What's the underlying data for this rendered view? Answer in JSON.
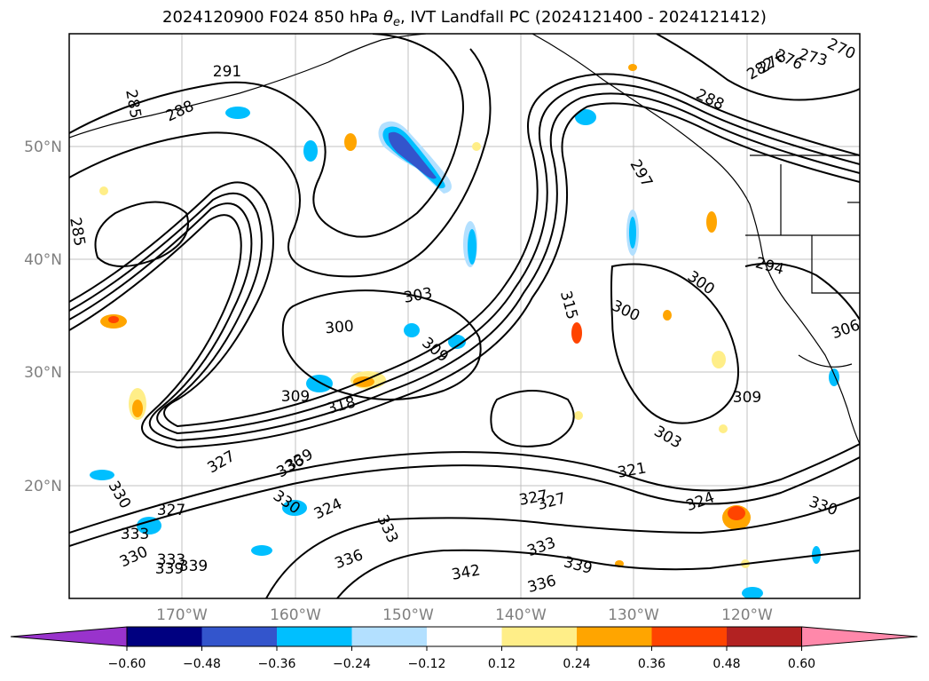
{
  "title": {
    "prefix": "2024120900 F024 850 hPa ",
    "theta": "θ",
    "theta_sub": "e",
    "suffix": ", IVT Landfall PC (2024121400 - 2024121412)"
  },
  "axes": {
    "lat_labels": [
      "50°N",
      "40°N",
      "30°N",
      "20°N"
    ],
    "lon_labels": [
      "170°W",
      "160°W",
      "150°W",
      "140°W",
      "130°W",
      "120°W"
    ]
  },
  "contour_labels": [
    "291",
    "285",
    "288",
    "285",
    "276",
    "273",
    "270",
    "276",
    "282",
    "288",
    "297",
    "294",
    "300",
    "303",
    "300",
    "300",
    "306",
    "309",
    "309",
    "309",
    "318",
    "315",
    "303",
    "321",
    "324",
    "327",
    "327",
    "330",
    "330",
    "327",
    "330",
    "324",
    "333",
    "333",
    "330",
    "333",
    "339",
    "339",
    "336",
    "333",
    "339",
    "342",
    "336",
    "339",
    "336",
    "327"
  ],
  "colorbar": {
    "ticks": [
      "−0.60",
      "−0.48",
      "−0.36",
      "−0.24",
      "−0.12",
      "0.12",
      "0.24",
      "0.36",
      "0.48",
      "0.60"
    ],
    "colors": [
      "#9933cc",
      "#000080",
      "#3355cc",
      "#00bfff",
      "#b3e0ff",
      "#ffffff",
      "#ffee88",
      "#ffa500",
      "#ff4400",
      "#b22222",
      "#ff88aa"
    ]
  }
}
